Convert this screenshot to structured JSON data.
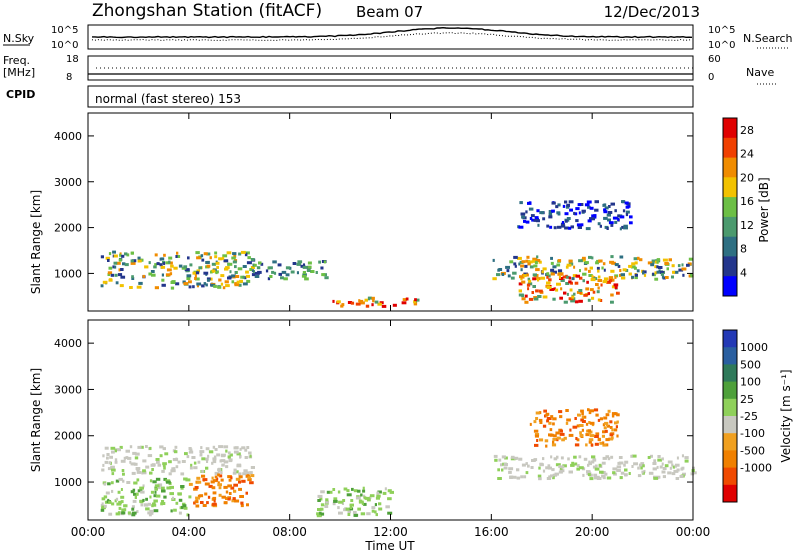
{
  "header": {
    "station": "Zhongshan Station (fitACF)",
    "beam": "Beam 07",
    "date": "12/Dec/2013"
  },
  "strips": {
    "nsky_label": "N.Sky",
    "nsky_ticks": [
      "10^5",
      "10^0"
    ],
    "nsearch_label": "N.Search",
    "nsearch_ticks": [
      "10^5",
      "10^0"
    ],
    "freq_label_1": "Freq.",
    "freq_label_2": "[MHz]",
    "freq_ticks": [
      "18",
      "8"
    ],
    "nave_label": "Nave",
    "nave_ticks": [
      "60",
      "0"
    ],
    "cpid_label": "CPID",
    "cpid_text": "normal (fast stereo) 153"
  },
  "colors": {
    "power": [
      "#0000ff",
      "#23368c",
      "#2e6f82",
      "#4b9a6e",
      "#6cbf45",
      "#f2c200",
      "#f08c00",
      "#f04000",
      "#e00000"
    ],
    "velocity": [
      "#2339b5",
      "#2a5fa0",
      "#2f7a5a",
      "#4ea03a",
      "#8fd05a",
      "#c8c8c0",
      "#f0a020",
      "#f08000",
      "#f04a00",
      "#e00000"
    ],
    "ground": "#c8c8c0"
  },
  "chart_data": [
    {
      "type": "heatmap",
      "name": "power",
      "ylabel": "Slant Range [km]",
      "xlabel": "",
      "x_ticks": [
        "00:00",
        "04:00",
        "08:00",
        "12:00",
        "16:00",
        "20:00",
        "00:00"
      ],
      "y_ticks": [
        "1000",
        "2000",
        "3000",
        "4000"
      ],
      "ylim": [
        180,
        4500
      ],
      "xlim_hours": [
        0,
        24
      ],
      "colorbar": {
        "label": "Power [dB]",
        "ticks": [
          "4",
          "8",
          "12",
          "16",
          "20",
          "24",
          "28"
        ],
        "range": [
          0,
          30
        ]
      },
      "echo_regions": [
        {
          "t": [
            0.5,
            6.5
          ],
          "r": [
            700,
            1500
          ],
          "level": "high"
        },
        {
          "t": [
            6.5,
            9.5
          ],
          "r": [
            900,
            1300
          ],
          "level": "mid"
        },
        {
          "t": [
            9.5,
            13.0
          ],
          "r": [
            300,
            500
          ],
          "level": "very_high"
        },
        {
          "t": [
            16.0,
            24.0
          ],
          "r": [
            900,
            1400
          ],
          "level": "high"
        },
        {
          "t": [
            17.0,
            21.0
          ],
          "r": [
            400,
            1000
          ],
          "level": "very_high"
        },
        {
          "t": [
            17.0,
            21.5
          ],
          "r": [
            2000,
            2600
          ],
          "level": "low"
        }
      ]
    },
    {
      "type": "heatmap",
      "name": "velocity",
      "ylabel": "Slant Range [km]",
      "xlabel": "Time UT",
      "x_ticks": [
        "00:00",
        "04:00",
        "08:00",
        "12:00",
        "16:00",
        "20:00",
        "00:00"
      ],
      "y_ticks": [
        "1000",
        "2000",
        "3000",
        "4000"
      ],
      "ylim": [
        180,
        4500
      ],
      "xlim_hours": [
        0,
        24
      ],
      "colorbar": {
        "label": "Velocity [m s⁻¹]",
        "ticks": [
          "1000",
          "500",
          "100",
          "25",
          "-25",
          "-100",
          "-500",
          "-1000"
        ]
      },
      "echo_regions": [
        {
          "t": [
            0.5,
            6.5
          ],
          "r": [
            1200,
            1800
          ],
          "level": "ground"
        },
        {
          "t": [
            4.0,
            6.5
          ],
          "r": [
            500,
            1200
          ],
          "level": "negative"
        },
        {
          "t": [
            0.5,
            4.0
          ],
          "r": [
            300,
            1100
          ],
          "level": "positive"
        },
        {
          "t": [
            9.0,
            12.0
          ],
          "r": [
            300,
            900
          ],
          "level": "positive"
        },
        {
          "t": [
            16.0,
            24.0
          ],
          "r": [
            1100,
            1600
          ],
          "level": "ground"
        },
        {
          "t": [
            17.5,
            21.0
          ],
          "r": [
            1800,
            2600
          ],
          "level": "negative"
        }
      ]
    }
  ]
}
